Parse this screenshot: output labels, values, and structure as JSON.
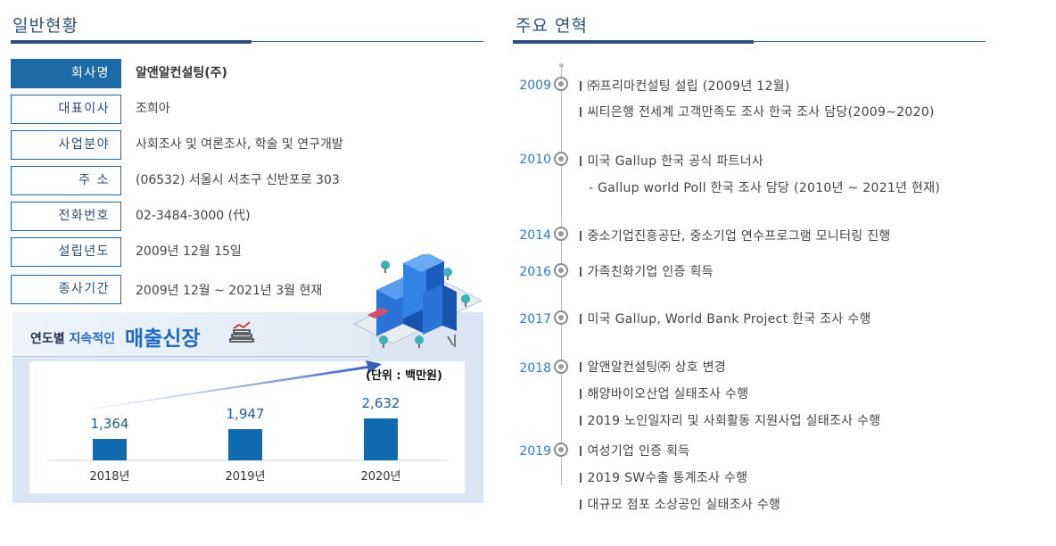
{
  "overview": {
    "title": "일반현황",
    "rows": [
      {
        "label": "회사명",
        "value": "알앤알컨설팅(주)"
      },
      {
        "label": "대표이사",
        "value": "조희아"
      },
      {
        "label": "사업분야",
        "value": "사회조사 및 여론조사, 학술 및 연구개발"
      },
      {
        "label": "주 소",
        "value": "(06532) 서울시 서초구 신반포로 303"
      },
      {
        "label": "전화번호",
        "value": "02-3484-3000 (代)"
      },
      {
        "label": "설립년도",
        "value": "2009년 12월 15일"
      },
      {
        "label": "종사기간",
        "value": "2009년 12월 ~ 2021년 3월 현재"
      }
    ]
  },
  "growth": {
    "title_prefix": "연도별",
    "title_mid": "지속적인",
    "title_main": "매출신장",
    "unit": "(단위 : 백만원)"
  },
  "chart_data": {
    "type": "bar",
    "categories": [
      "2018년",
      "2019년",
      "2020년"
    ],
    "values": [
      1364,
      1947,
      2632
    ],
    "value_labels": [
      "1,364",
      "1,947",
      "2,632"
    ],
    "bar_color": "#0f6aae",
    "ylim": [
      0,
      2700
    ]
  },
  "history": {
    "title": "주요 연혁",
    "entries": [
      {
        "year": "2009",
        "items": [
          "㈜프리마컨설팅 설립 (2009년 12월)",
          "씨티은행 전세계 고객만족도 조사 한국 조사 담당(2009~2020)"
        ]
      },
      {
        "year": "2010",
        "items": [
          "미국 Gallup 한국 공식 파트너사"
        ],
        "sub": "- Gallup world Poll 한국 조사 담당 (2010년 ~ 2021년 현재)"
      },
      {
        "year": "2014",
        "items": [
          "중소기업진흥공단, 중소기업 연수프로그램 모니터링 진행"
        ]
      },
      {
        "year": "2016",
        "items": [
          "가족친화기업 인증 획득"
        ]
      },
      {
        "year": "2017",
        "items": [
          "미국 Gallup,  World Bank Project 한국 조사 수행"
        ]
      },
      {
        "year": "2018",
        "items": [
          "알앤알컨설팅㈜ 상호 변경",
          "해양바이오산업 실태조사 수행",
          "2019 노인일자리 및 사회활동 지원사업 실태조사 수행"
        ]
      },
      {
        "year": "2019",
        "items": [
          "여성기업 인증 획득",
          "2019 SW수출 통계조사 수행",
          "대규모 점포 소상공인 실태조사 수행"
        ]
      }
    ]
  },
  "colors": {
    "accent": "#1e6aa6",
    "title": "#2e4f79",
    "year": "#2f7cc4"
  }
}
